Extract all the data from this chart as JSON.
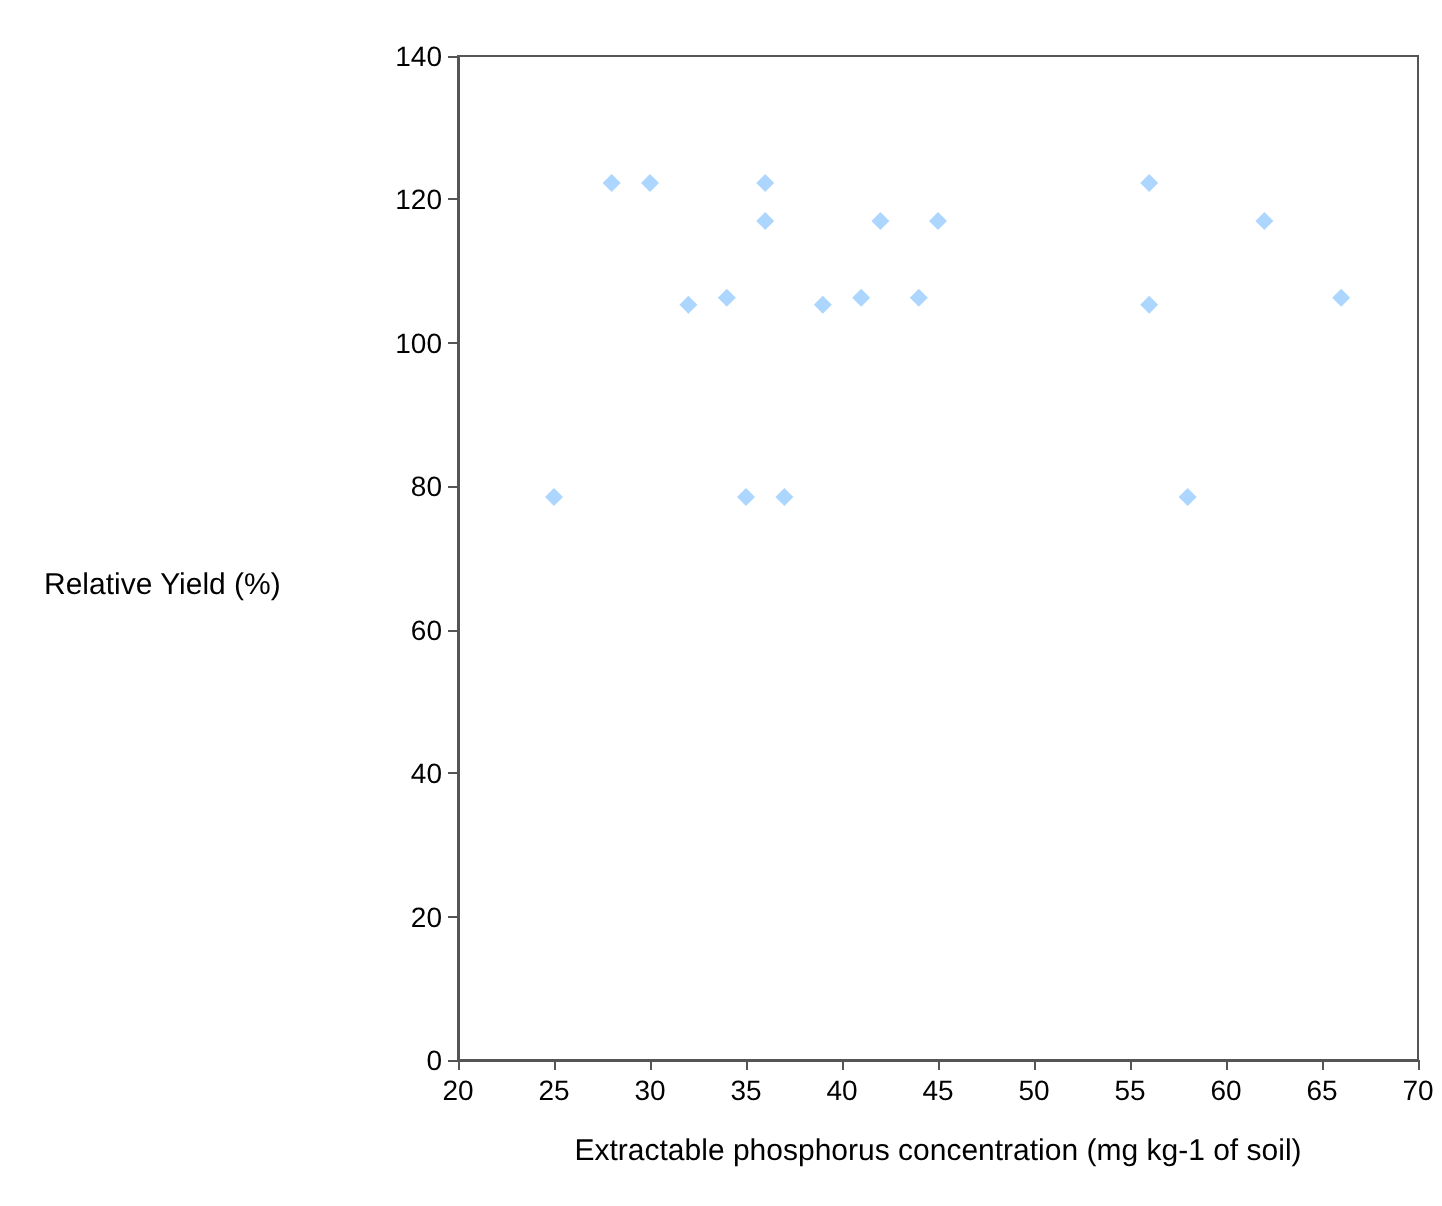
{
  "chart_data": {
    "type": "scatter",
    "xlabel": "Extractable phosphorus concentration (mg kg-1 of soil)",
    "ylabel": "Relative Yield (%)",
    "x": [
      25,
      28,
      30,
      32,
      34,
      35,
      36,
      36,
      37,
      39,
      41,
      42,
      44,
      45,
      56,
      56,
      58,
      62,
      66
    ],
    "values": [
      78.5,
      122.3,
      122.3,
      105.3,
      106.3,
      78.5,
      122.3,
      117,
      78.5,
      105.3,
      106.3,
      117,
      106.3,
      117,
      122.3,
      105.3,
      78.5,
      117,
      106.3
    ],
    "color": "#99ccff",
    "marker": "diamond",
    "xlim": [
      20,
      70
    ],
    "xticks": [
      20,
      25,
      30,
      35,
      40,
      45,
      50,
      55,
      60,
      65,
      70
    ],
    "ylim": [
      0,
      140
    ],
    "yticks": [
      0,
      20,
      40,
      60,
      80,
      100,
      120,
      140
    ]
  }
}
